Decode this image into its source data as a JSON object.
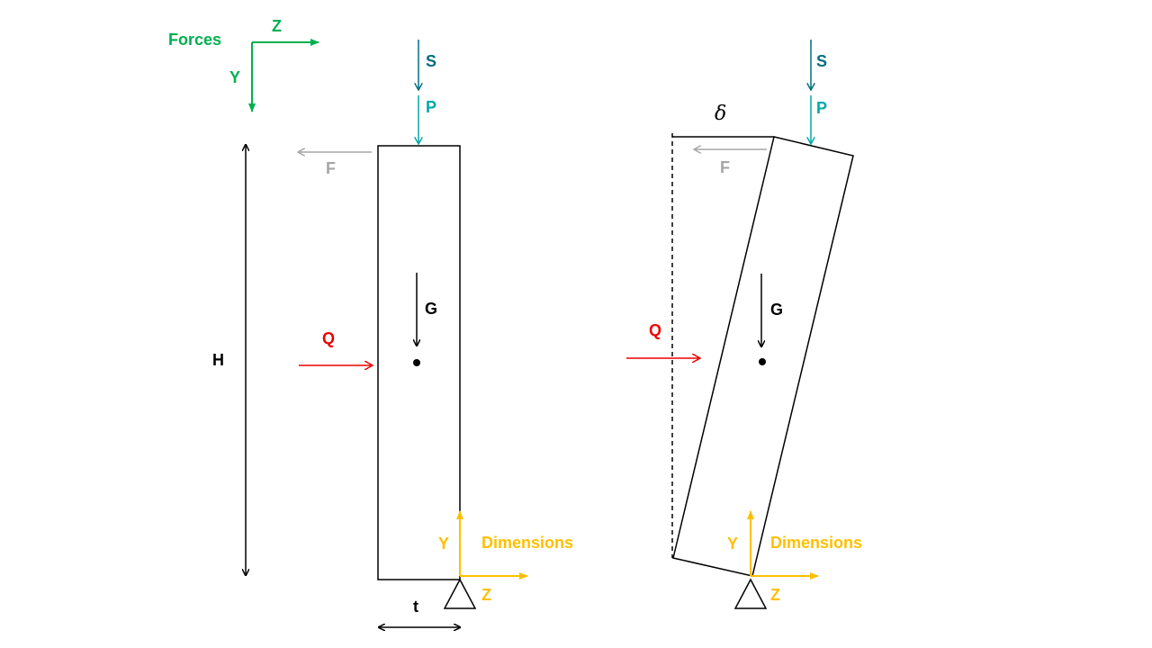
{
  "colors": {
    "axes_forces": "#00b050",
    "axes_dimensions": "#ffc000",
    "load_s": "#006e7f",
    "load_p": "#00a8a8",
    "load_f": "#a6a6a6",
    "load_q": "#ee0000",
    "black": "#000000"
  },
  "forces_axes": {
    "title": "Forces",
    "z_label": "Z",
    "y_label": "Y"
  },
  "loads": {
    "s": "S",
    "p": "P",
    "f": "F",
    "q": "Q",
    "g": "G"
  },
  "dimensions": {
    "height": "H",
    "thickness": "t",
    "displacement": "δ"
  },
  "dimensions_axes": {
    "title": "Dimensions",
    "y_label": "Y",
    "z_label": "Z"
  }
}
